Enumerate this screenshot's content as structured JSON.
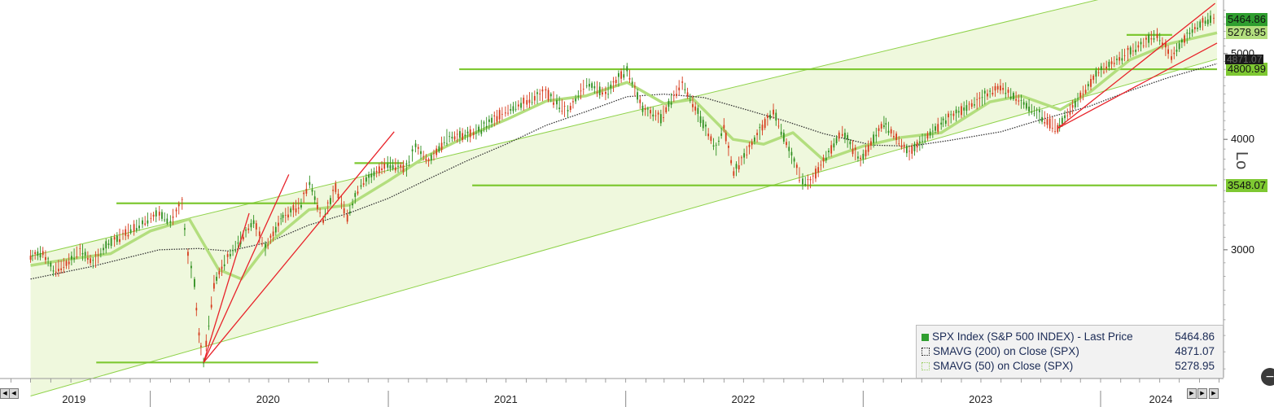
{
  "chart_data": {
    "type": "line",
    "y_scale": "log",
    "y_ticks": [
      3000,
      4000,
      5000
    ],
    "ylim": [
      2150,
      5750
    ],
    "x_labels": [
      "2019",
      "2020",
      "2021",
      "2022",
      "2023",
      "2024"
    ],
    "grid": false,
    "legend_position": "bottom-right",
    "series": [
      {
        "name": "SPX Index (S&P 500 INDEX) - Last Price",
        "last_value": "5464.86",
        "color": "#1e8a1e",
        "points": [
          [
            "2019-07-01",
            2950
          ],
          [
            "2019-07-20",
            2980
          ],
          [
            "2019-08-05",
            2840
          ],
          [
            "2019-08-25",
            2890
          ],
          [
            "2019-09-15",
            3000
          ],
          [
            "2019-10-05",
            2900
          ],
          [
            "2019-10-25",
            3030
          ],
          [
            "2019-11-20",
            3120
          ],
          [
            "2019-12-20",
            3220
          ],
          [
            "2020-01-15",
            3300
          ],
          [
            "2020-02-01",
            3230
          ],
          [
            "2020-02-19",
            3386
          ],
          [
            "2020-02-28",
            2950
          ],
          [
            "2020-03-09",
            2750
          ],
          [
            "2020-03-16",
            2400
          ],
          [
            "2020-03-23",
            2237
          ],
          [
            "2020-04-08",
            2750
          ],
          [
            "2020-04-29",
            2940
          ],
          [
            "2020-06-08",
            3230
          ],
          [
            "2020-06-26",
            3010
          ],
          [
            "2020-07-20",
            3250
          ],
          [
            "2020-08-20",
            3380
          ],
          [
            "2020-09-02",
            3580
          ],
          [
            "2020-09-23",
            3240
          ],
          [
            "2020-10-12",
            3530
          ],
          [
            "2020-10-30",
            3270
          ],
          [
            "2020-11-20",
            3560
          ],
          [
            "2020-12-31",
            3756
          ],
          [
            "2021-01-29",
            3710
          ],
          [
            "2021-02-12",
            3930
          ],
          [
            "2021-03-04",
            3770
          ],
          [
            "2021-04-01",
            4020
          ],
          [
            "2021-05-12",
            4060
          ],
          [
            "2021-06-30",
            4300
          ],
          [
            "2021-08-31",
            4520
          ],
          [
            "2021-10-04",
            4300
          ],
          [
            "2021-11-02",
            4630
          ],
          [
            "2021-12-01",
            4510
          ],
          [
            "2022-01-03",
            4796
          ],
          [
            "2022-01-27",
            4330
          ],
          [
            "2022-02-24",
            4230
          ],
          [
            "2022-03-29",
            4630
          ],
          [
            "2022-05-20",
            3900
          ],
          [
            "2022-06-01",
            4150
          ],
          [
            "2022-06-16",
            3667
          ],
          [
            "2022-08-16",
            4305
          ],
          [
            "2022-09-30",
            3585
          ],
          [
            "2022-10-12",
            3577
          ],
          [
            "2022-11-30",
            4080
          ],
          [
            "2022-12-28",
            3783
          ],
          [
            "2023-02-02",
            4180
          ],
          [
            "2023-03-13",
            3855
          ],
          [
            "2023-05-01",
            4170
          ],
          [
            "2023-07-31",
            4589
          ],
          [
            "2023-10-27",
            4117
          ],
          [
            "2023-12-29",
            4770
          ],
          [
            "2024-03-28",
            5254
          ],
          [
            "2024-04-19",
            4967
          ],
          [
            "2024-05-21",
            5321
          ],
          [
            "2024-06-18",
            5487
          ],
          [
            "2024-06-28",
            5464
          ]
        ]
      },
      {
        "name": "SMAVG (200) on Close (SPX)",
        "last_value": "4871.07",
        "color": "#333333",
        "points": [
          [
            "2019-07-01",
            2780
          ],
          [
            "2019-10-01",
            2870
          ],
          [
            "2020-01-15",
            3000
          ],
          [
            "2020-03-15",
            3010
          ],
          [
            "2020-05-01",
            2990
          ],
          [
            "2020-07-01",
            3060
          ],
          [
            "2020-09-01",
            3200
          ],
          [
            "2020-11-01",
            3300
          ],
          [
            "2021-01-01",
            3430
          ],
          [
            "2021-03-01",
            3600
          ],
          [
            "2021-05-01",
            3780
          ],
          [
            "2021-07-01",
            3950
          ],
          [
            "2021-09-01",
            4150
          ],
          [
            "2021-11-01",
            4300
          ],
          [
            "2022-01-03",
            4470
          ],
          [
            "2022-03-01",
            4500
          ],
          [
            "2022-05-01",
            4460
          ],
          [
            "2022-07-01",
            4330
          ],
          [
            "2022-09-01",
            4200
          ],
          [
            "2022-11-01",
            4060
          ],
          [
            "2023-01-15",
            3940
          ],
          [
            "2023-03-15",
            3930
          ],
          [
            "2023-05-15",
            3990
          ],
          [
            "2023-08-01",
            4080
          ],
          [
            "2023-10-01",
            4210
          ],
          [
            "2023-12-15",
            4360
          ],
          [
            "2024-02-15",
            4540
          ],
          [
            "2024-04-15",
            4700
          ],
          [
            "2024-06-28",
            4871
          ]
        ]
      },
      {
        "name": "SMAVG (50) on Close (SPX)",
        "last_value": "5278.95",
        "color": "#b3de7e",
        "points": [
          [
            "2019-07-01",
            2880
          ],
          [
            "2019-09-01",
            2930
          ],
          [
            "2019-11-01",
            2970
          ],
          [
            "2020-01-01",
            3150
          ],
          [
            "2020-03-01",
            3250
          ],
          [
            "2020-04-15",
            2850
          ],
          [
            "2020-05-20",
            2780
          ],
          [
            "2020-07-01",
            3050
          ],
          [
            "2020-09-01",
            3330
          ],
          [
            "2020-11-01",
            3370
          ],
          [
            "2021-01-01",
            3590
          ],
          [
            "2021-03-01",
            3830
          ],
          [
            "2021-05-01",
            4030
          ],
          [
            "2021-07-01",
            4210
          ],
          [
            "2021-09-01",
            4420
          ],
          [
            "2021-11-01",
            4480
          ],
          [
            "2022-01-03",
            4640
          ],
          [
            "2022-03-01",
            4390
          ],
          [
            "2022-04-15",
            4440
          ],
          [
            "2022-06-15",
            4000
          ],
          [
            "2022-08-01",
            3950
          ],
          [
            "2022-09-15",
            4070
          ],
          [
            "2022-11-01",
            3790
          ],
          [
            "2023-01-01",
            3930
          ],
          [
            "2023-03-01",
            4020
          ],
          [
            "2023-05-01",
            4070
          ],
          [
            "2023-07-15",
            4410
          ],
          [
            "2023-09-01",
            4480
          ],
          [
            "2023-10-31",
            4320
          ],
          [
            "2023-12-15",
            4520
          ],
          [
            "2024-02-15",
            4920
          ],
          [
            "2024-04-15",
            5130
          ],
          [
            "2024-06-28",
            5279
          ]
        ]
      }
    ],
    "price_tags": [
      {
        "label": "5464.86",
        "value": 5464.86,
        "color": "#2f9e2f"
      },
      {
        "label": "5278.95",
        "value": 5278.95,
        "color": "#b3de7e"
      },
      {
        "label": "4800.99",
        "value": 4800.99,
        "color": "#7ec832"
      },
      {
        "label": "3548.07",
        "value": 3548.07,
        "color": "#7ec832"
      }
    ],
    "horizontal_levels": [
      {
        "value": 4800.99,
        "from": "2021-04-20",
        "to": "2024-06-28"
      },
      {
        "value": 3548.07,
        "from": "2021-05-10",
        "to": "2024-06-28"
      },
      {
        "value": 3386,
        "from": "2019-11-10",
        "to": "2020-09-15"
      },
      {
        "value": 3760,
        "from": "2020-11-10",
        "to": "2021-01-25"
      },
      {
        "value": 5250,
        "from": "2024-02-10",
        "to": "2024-04-20"
      },
      {
        "value": 2237,
        "from": "2019-10-10",
        "to": "2020-09-15"
      }
    ],
    "channel": {
      "upper": [
        [
          "2019-07-01",
          2950
        ],
        [
          "2024-06-28",
          6200
        ]
      ],
      "lower": [
        [
          "2019-07-01",
          2050
        ],
        [
          "2024-06-28",
          4930
        ]
      ]
    },
    "trendlines": [
      {
        "from": [
          "2020-03-23",
          2237
        ],
        "to": [
          "2020-06-01",
          3300
        ]
      },
      {
        "from": [
          "2020-03-23",
          2237
        ],
        "to": [
          "2020-08-01",
          3650
        ]
      },
      {
        "from": [
          "2020-03-23",
          2237
        ],
        "to": [
          "2021-01-10",
          4080
        ]
      },
      {
        "from": [
          "2023-10-27",
          4117
        ],
        "to": [
          "2024-06-25",
          5700
        ]
      },
      {
        "from": [
          "2023-10-27",
          4117
        ],
        "to": [
          "2024-06-28",
          5140
        ]
      }
    ]
  },
  "legend": {
    "rows": [
      {
        "label": "SPX Index (S&P 500 INDEX) - Last Price",
        "value": "5464.86",
        "color": "#2f9e2f"
      },
      {
        "label": "SMAVG (200)  on Close (SPX)",
        "value": "4871.07",
        "color": "#222222"
      },
      {
        "label": "SMAVG (50)  on Close (SPX)",
        "value": "5278.95",
        "color": "#b3de7e"
      }
    ]
  },
  "axis_partial_label": "Lo",
  "partial_tick": "4871.07",
  "icons": {
    "nav_left": "scroll-left-icon",
    "nav_right": "scroll-right-icon",
    "nav_end": "scroll-end-icon",
    "corner": "minimize-icon"
  }
}
